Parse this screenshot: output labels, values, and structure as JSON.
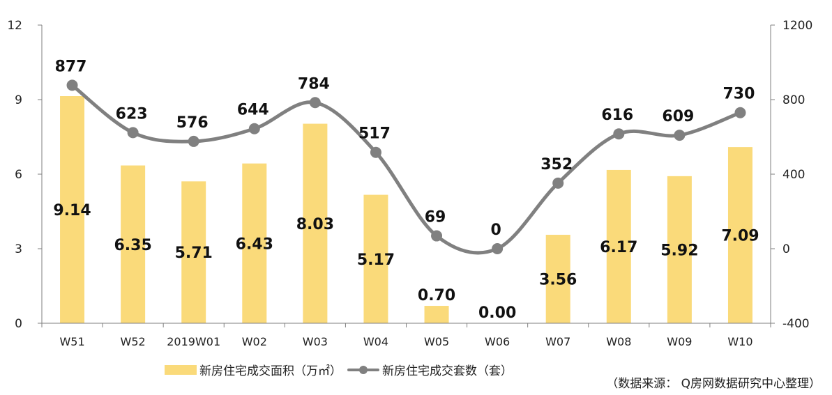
{
  "chart_data": {
    "type": "bar+line",
    "categories": [
      "W51",
      "W52",
      "2019W01",
      "W02",
      "W03",
      "W04",
      "W05",
      "W06",
      "W07",
      "W08",
      "W09",
      "W10"
    ],
    "series": [
      {
        "name": "新房住宅成交面积（万㎡）",
        "type": "bar",
        "axis": "left",
        "color": "#FADA7A",
        "values": [
          9.14,
          6.35,
          5.71,
          6.43,
          8.03,
          5.17,
          0.7,
          0.0,
          3.56,
          6.17,
          5.92,
          7.09
        ],
        "labels": [
          "9.14",
          "6.35",
          "5.71",
          "6.43",
          "8.03",
          "5.17",
          "0.70",
          "0.00",
          "3.56",
          "6.17",
          "5.92",
          "7.09"
        ]
      },
      {
        "name": "新房住宅成交套数（套）",
        "type": "line",
        "axis": "right",
        "color": "#808080",
        "values": [
          877,
          623,
          576,
          644,
          784,
          517,
          69,
          0,
          352,
          616,
          609,
          730
        ],
        "labels": [
          "877",
          "623",
          "576",
          "644",
          "784",
          "517",
          "69",
          "0",
          "352",
          "616",
          "609",
          "730"
        ]
      }
    ],
    "y_left": {
      "min": 0,
      "max": 12,
      "ticks": [
        "0",
        "3",
        "6",
        "9",
        "12"
      ]
    },
    "y_right": {
      "min": -400,
      "max": 1200,
      "ticks": [
        "-400",
        "0",
        "400",
        "800",
        "1200"
      ]
    },
    "grid": false,
    "legend": "bottom",
    "source": "（数据来源： Q房网数据研究中心整理）"
  }
}
